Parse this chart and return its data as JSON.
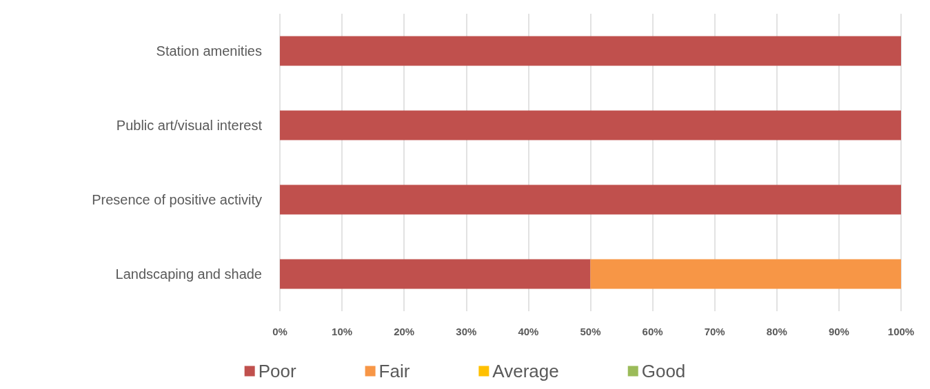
{
  "chart_data": {
    "type": "bar",
    "orientation": "horizontal",
    "stacked": true,
    "categories": [
      "Station amenities",
      "Public art/visual interest",
      "Presence of positive activity",
      "Landscaping and shade"
    ],
    "series": [
      {
        "name": "Poor",
        "color": "#c0504d",
        "values": [
          100,
          100,
          100,
          50
        ]
      },
      {
        "name": "Fair",
        "color": "#f79646",
        "values": [
          0,
          0,
          0,
          50
        ]
      },
      {
        "name": "Average",
        "color": "#ffc000",
        "values": [
          0,
          0,
          0,
          0
        ]
      },
      {
        "name": "Good",
        "color": "#9bbb59",
        "values": [
          0,
          0,
          0,
          0
        ]
      }
    ],
    "xlim": [
      0,
      100
    ],
    "xticks": [
      {
        "value": 0,
        "label": "0%"
      },
      {
        "value": 10,
        "label": "10%"
      },
      {
        "value": 20,
        "label": "20%"
      },
      {
        "value": 30,
        "label": "30%"
      },
      {
        "value": 40,
        "label": "40%"
      },
      {
        "value": 50,
        "label": "50%"
      },
      {
        "value": 60,
        "label": "60%"
      },
      {
        "value": 70,
        "label": "70%"
      },
      {
        "value": 80,
        "label": "80%"
      },
      {
        "value": 90,
        "label": "90%"
      },
      {
        "value": 100,
        "label": "100%"
      }
    ],
    "grid": "x",
    "legend": "bottom"
  }
}
